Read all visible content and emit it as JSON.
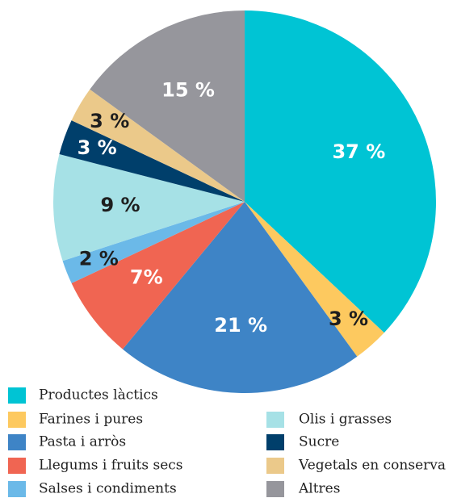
{
  "chart_data": {
    "type": "pie",
    "categories": [
      "Productes làctics",
      "Farines i pures",
      "Pasta i arròs",
      "Llegums i fruits secs",
      "Salses i condiments",
      "Olis i grasses",
      "Sucre",
      "Vegetals en conserva",
      "Altres"
    ],
    "values": [
      37,
      3,
      21,
      7,
      2,
      9,
      3,
      3,
      15
    ],
    "value_labels": [
      "37 %",
      "3 %",
      "21 %",
      "7%",
      "2 %",
      "9 %",
      "3 %",
      "3 %",
      "15 %"
    ],
    "colors": [
      "#00c4d4",
      "#fdc95f",
      "#3e84c6",
      "#f06552",
      "#6bb9e8",
      "#a6e1e6",
      "#003f6b",
      "#ebc98a",
      "#96969c"
    ],
    "label_colors": [
      "#ffffff",
      "#1e1e1e",
      "#ffffff",
      "#ffffff",
      "#1e1e1e",
      "#1e1e1e",
      "#ffffff",
      "#1e1e1e",
      "#ffffff"
    ]
  }
}
